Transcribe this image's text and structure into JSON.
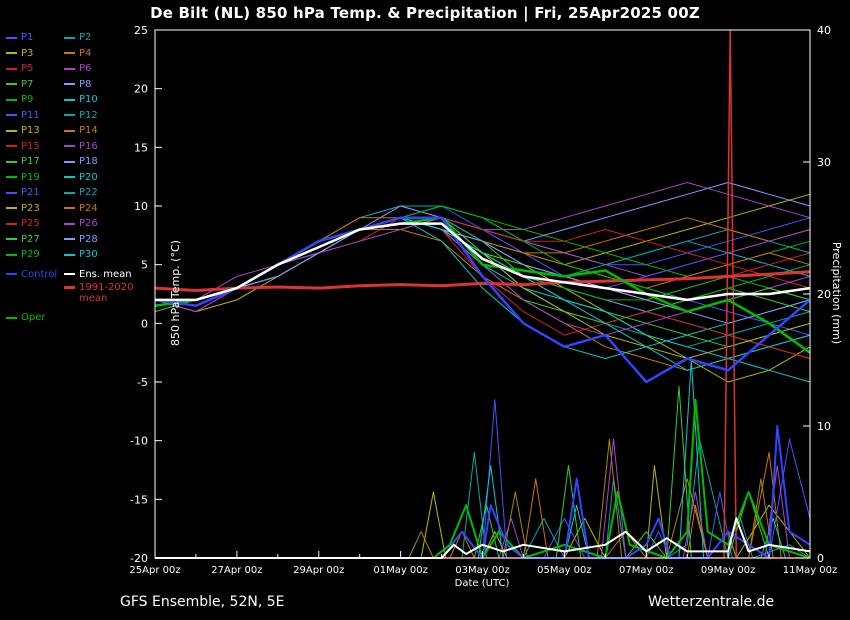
{
  "header": {
    "title": "De Bilt  (NL)  850 hPa Temp. & Precipitation | Fri, 25Apr2025 00Z"
  },
  "footer": {
    "left": "GFS Ensemble, 52N, 5E",
    "right": "Wetterzentrale.de"
  },
  "legend": {
    "control": {
      "label": "Control",
      "color": "#3344ff"
    },
    "ens_mean": {
      "label": "Ens. mean",
      "color": "#ffffff"
    },
    "oper": {
      "label": "Oper",
      "color": "#00bb00"
    },
    "climate": {
      "label_line1": "1991-2020",
      "label_line2": "mean",
      "color": "#dd3333"
    }
  },
  "chart_data": {
    "type": "line",
    "title": "De Bilt (NL) 850 hPa Temp. & Precipitation | Fri, 25Apr2025 00Z",
    "xlabel": "Date (UTC)",
    "ylabel_left": "850 hPa Temp. (°C)",
    "ylabel_right": "Precipitation (mm)",
    "ylim_left": [
      -20,
      25
    ],
    "ylim_right": [
      0,
      40
    ],
    "y_ticks_left": [
      25,
      20,
      15,
      10,
      5,
      0,
      -5,
      -10,
      -15,
      -20
    ],
    "y_ticks_right": [
      40,
      30,
      20,
      10,
      0
    ],
    "days": 16,
    "x_tick_labels": [
      "25Apr 00z",
      "27Apr 00z",
      "29Apr 00z",
      "01May 00z",
      "03May 00z",
      "05May 00z",
      "07May 00z",
      "09May 00z",
      "11May 00z"
    ],
    "legend_position": "left",
    "grid": false,
    "main_series": [
      {
        "name": "1991-2020 mean",
        "color": "#dd3333",
        "width": 3,
        "values": [
          3,
          2.8,
          3,
          3.1,
          3,
          3.2,
          3.3,
          3.2,
          3.4,
          3.3,
          3.5,
          3.6,
          3.7,
          3.8,
          4,
          4.2,
          4.4
        ]
      },
      {
        "name": "Oper",
        "color": "#00bb00",
        "width": 2.5,
        "values": [
          1.5,
          2,
          3,
          5,
          7,
          8,
          8.5,
          9,
          5,
          4.5,
          4,
          4.5,
          2.5,
          1,
          2,
          0,
          -2.5
        ]
      },
      {
        "name": "Control",
        "color": "#3344ff",
        "width": 2.5,
        "values": [
          2,
          1.5,
          3,
          5,
          7,
          8,
          9,
          9,
          4,
          0,
          -2,
          -1,
          -5,
          -3,
          -4,
          -1,
          2
        ]
      },
      {
        "name": "Ens. mean",
        "color": "#ffffff",
        "width": 2.5,
        "values": [
          2,
          2,
          3,
          5,
          6.5,
          8,
          8.5,
          8.5,
          5.5,
          4,
          3.5,
          3,
          2.5,
          2,
          2.5,
          2.5,
          3
        ]
      }
    ],
    "members": [
      {
        "name": "P1",
        "color": "#4455ff",
        "values": [
          2,
          2,
          3,
          5,
          7,
          8,
          9,
          9,
          8,
          7,
          6,
          5,
          5,
          6,
          7,
          8,
          9
        ]
      },
      {
        "name": "P2",
        "color": "#00aaaa",
        "values": [
          1.5,
          2,
          3,
          5,
          7,
          8,
          9,
          8,
          6,
          3,
          1,
          0,
          -1,
          -2,
          -1,
          0,
          1
        ]
      },
      {
        "name": "P3",
        "color": "#b8b800",
        "values": [
          2,
          2,
          3,
          4,
          6,
          8,
          9,
          8,
          7,
          6,
          5,
          6,
          7,
          8,
          9,
          10,
          11
        ]
      },
      {
        "name": "P4",
        "color": "#cc7700",
        "values": [
          2,
          2,
          3,
          5,
          7,
          8,
          8,
          7,
          4,
          2,
          0,
          -2,
          -3,
          -4,
          -3,
          -2,
          -3
        ]
      },
      {
        "name": "P5",
        "color": "#cc2222",
        "values": [
          2,
          1,
          3,
          5,
          6,
          7,
          9,
          9,
          7,
          5,
          4,
          3,
          2,
          3,
          4,
          5,
          6
        ]
      },
      {
        "name": "P6",
        "color": "#aa44cc",
        "values": [
          2,
          2,
          4,
          5,
          7,
          9,
          10,
          9,
          8,
          8,
          9,
          10,
          11,
          12,
          11,
          10,
          9
        ]
      },
      {
        "name": "P7",
        "color": "#33cc33",
        "values": [
          1,
          2,
          3,
          5,
          7,
          8,
          9,
          8,
          5,
          2,
          1,
          0,
          1,
          2,
          3,
          2,
          1
        ]
      },
      {
        "name": "P8",
        "color": "#8899ff",
        "values": [
          2,
          2,
          3,
          5,
          7,
          8,
          9,
          9,
          6,
          4,
          3,
          2,
          1,
          0,
          -1,
          -2,
          -1
        ]
      },
      {
        "name": "P9",
        "color": "#00bb00",
        "values": [
          2,
          2,
          3,
          4,
          6,
          8,
          9,
          10,
          9,
          8,
          7,
          6,
          5,
          4,
          5,
          6,
          7
        ]
      },
      {
        "name": "P10",
        "color": "#00cccc",
        "values": [
          2,
          2,
          3,
          5,
          7,
          8,
          9,
          7,
          3,
          0,
          -2,
          -3,
          -2,
          -1,
          0,
          1,
          2
        ]
      },
      {
        "name": "P11",
        "color": "#4455ff",
        "values": [
          2,
          2,
          3,
          5,
          6,
          8,
          9,
          9,
          8,
          6,
          5,
          4,
          3,
          2,
          1,
          0,
          -1
        ]
      },
      {
        "name": "P12",
        "color": "#00aaaa",
        "values": [
          2,
          2,
          3,
          5,
          7,
          9,
          10,
          10,
          9,
          7,
          6,
          5,
          6,
          7,
          8,
          7,
          6
        ]
      },
      {
        "name": "P13",
        "color": "#b8b800",
        "values": [
          2,
          1,
          2,
          4,
          6,
          8,
          9,
          8,
          6,
          5,
          3,
          1,
          -1,
          -3,
          -5,
          -4,
          -2
        ]
      },
      {
        "name": "P14",
        "color": "#cc7700",
        "values": [
          2,
          2,
          3,
          5,
          7,
          8,
          8,
          9,
          7,
          6,
          6,
          7,
          8,
          9,
          8,
          7,
          8
        ]
      },
      {
        "name": "P15",
        "color": "#cc2222",
        "values": [
          2,
          2,
          3,
          5,
          7,
          8,
          9,
          8,
          4,
          1,
          -1,
          0,
          1,
          0,
          -1,
          -2,
          -3
        ]
      },
      {
        "name": "P16",
        "color": "#aa44cc",
        "values": [
          2,
          2,
          3,
          4,
          6,
          7,
          8,
          9,
          8,
          7,
          6,
          5,
          4,
          5,
          6,
          7,
          8
        ]
      },
      {
        "name": "P17",
        "color": "#33cc33",
        "values": [
          2,
          2,
          3,
          5,
          7,
          8,
          9,
          9,
          7,
          4,
          2,
          1,
          0,
          -1,
          -2,
          -1,
          0
        ]
      },
      {
        "name": "P18",
        "color": "#8899ff",
        "values": [
          1.5,
          2,
          3,
          5,
          7,
          8,
          10,
          9,
          8,
          7,
          8,
          9,
          10,
          11,
          12,
          11,
          10
        ]
      },
      {
        "name": "P19",
        "color": "#00bb00",
        "values": [
          2,
          2,
          3,
          5,
          6,
          8,
          9,
          8,
          6,
          4,
          3,
          2,
          2,
          3,
          4,
          3,
          2
        ]
      },
      {
        "name": "P20",
        "color": "#00cccc",
        "values": [
          2,
          2,
          3,
          5,
          7,
          8,
          9,
          8,
          5,
          3,
          2,
          1,
          -1,
          -2,
          -3,
          -4,
          -5
        ]
      },
      {
        "name": "P21",
        "color": "#4455ff",
        "values": [
          2,
          2,
          3,
          5,
          7,
          8,
          9,
          10,
          8,
          6,
          4,
          3,
          4,
          5,
          6,
          5,
          4
        ]
      },
      {
        "name": "P22",
        "color": "#00aaaa",
        "values": [
          2,
          2,
          3,
          4,
          6,
          8,
          9,
          9,
          7,
          5,
          4,
          5,
          6,
          7,
          6,
          5,
          4
        ]
      },
      {
        "name": "P23",
        "color": "#b8b800",
        "values": [
          2,
          2,
          3,
          5,
          7,
          8,
          9,
          8,
          6,
          3,
          1,
          -1,
          -2,
          -3,
          -2,
          -1,
          0
        ]
      },
      {
        "name": "P24",
        "color": "#cc7700",
        "values": [
          2,
          2,
          3,
          5,
          7,
          9,
          9,
          8,
          7,
          6,
          5,
          4,
          3,
          4,
          5,
          6,
          5
        ]
      },
      {
        "name": "P25",
        "color": "#cc2222",
        "values": [
          2,
          2,
          3,
          5,
          7,
          8,
          9,
          9,
          8,
          7,
          7,
          8,
          7,
          6,
          5,
          4,
          3
        ]
      },
      {
        "name": "P26",
        "color": "#aa44cc",
        "values": [
          2,
          1,
          3,
          5,
          6,
          8,
          9,
          8,
          5,
          2,
          0,
          -1,
          0,
          1,
          2,
          3,
          4
        ]
      },
      {
        "name": "P27",
        "color": "#33cc33",
        "values": [
          2,
          2,
          3,
          5,
          7,
          8,
          9,
          9,
          6,
          5,
          4,
          3,
          2,
          1,
          2,
          3,
          2
        ]
      },
      {
        "name": "P28",
        "color": "#8899ff",
        "values": [
          2,
          2,
          3,
          4,
          6,
          8,
          9,
          8,
          7,
          5,
          4,
          3,
          2,
          1,
          0,
          1,
          2
        ]
      },
      {
        "name": "P29",
        "color": "#00bb00",
        "values": [
          2,
          2,
          3,
          5,
          7,
          8,
          9,
          10,
          9,
          7,
          5,
          4,
          3,
          2,
          3,
          4,
          5
        ]
      },
      {
        "name": "P30",
        "color": "#00cccc",
        "values": [
          2,
          2,
          3,
          5,
          7,
          8,
          9,
          8,
          6,
          4,
          2,
          0,
          -2,
          -4,
          -3,
          -2,
          -1
        ]
      }
    ],
    "precip_series": [
      {
        "name": "precip-member-teal",
        "color": "#00aaaa",
        "width": 1,
        "x": [
          0,
          7.5,
          7.8,
          8.1,
          9,
          9.5,
          10,
          11,
          11.2,
          11.5,
          12.5,
          13,
          13.3,
          14,
          14.3,
          14.6,
          15.5,
          16
        ],
        "values": [
          0,
          0,
          8,
          0,
          0,
          3,
          0,
          0,
          6,
          0,
          0,
          1,
          9,
          0,
          3,
          0,
          1,
          0
        ]
      },
      {
        "name": "precip-member-olive",
        "color": "#b8b800",
        "width": 1,
        "x": [
          0,
          6.5,
          6.8,
          7.1,
          8,
          8.3,
          8.6,
          10,
          10.5,
          11,
          12,
          12.2,
          12.5,
          13.5,
          14,
          14.2,
          15,
          16
        ],
        "values": [
          0,
          0,
          5,
          0,
          0,
          2,
          0,
          0,
          3,
          0,
          0,
          7,
          0,
          0,
          2,
          0,
          4,
          0
        ]
      },
      {
        "name": "precip-member-orange",
        "color": "#cc7700",
        "width": 1,
        "x": [
          0,
          7.2,
          7.5,
          7.8,
          9,
          9.3,
          9.6,
          11,
          11.5,
          12,
          13,
          13.2,
          13.5,
          14.5,
          15,
          15.3,
          16
        ],
        "values": [
          0,
          0,
          2,
          0,
          0,
          6,
          0,
          0,
          2,
          0,
          0,
          4,
          0,
          0,
          8,
          0,
          0
        ]
      },
      {
        "name": "precip-member-blue",
        "color": "#4455ff",
        "width": 1,
        "x": [
          0,
          8,
          8.3,
          8.6,
          9.5,
          10,
          10.5,
          12,
          12.3,
          12.6,
          13.5,
          13.8,
          14.1,
          15,
          15.5,
          16
        ],
        "values": [
          0,
          0,
          12,
          0,
          0,
          3,
          0,
          0,
          2,
          0,
          0,
          5,
          0,
          0,
          9,
          3
        ]
      },
      {
        "name": "precip-member-green",
        "color": "#33cc33",
        "width": 1,
        "x": [
          0,
          7.8,
          8.1,
          8.4,
          9.8,
          10.1,
          10.4,
          11.5,
          12,
          12.5,
          12.8,
          13.1,
          14,
          14.5,
          15,
          16
        ],
        "values": [
          0,
          0,
          4,
          0,
          0,
          7,
          0,
          0,
          2,
          0,
          13,
          0,
          0,
          5,
          0,
          0
        ]
      },
      {
        "name": "precip-member-gold",
        "color": "#aa8800",
        "width": 1,
        "x": [
          0,
          6.2,
          6.5,
          6.8,
          8.5,
          8.8,
          9.1,
          10.8,
          11.1,
          11.4,
          12.5,
          13,
          13.5,
          14.5,
          14.8,
          15.1,
          16
        ],
        "values": [
          0,
          0,
          2,
          0,
          0,
          5,
          0,
          0,
          9,
          0,
          0,
          6,
          0,
          0,
          6,
          0,
          0
        ]
      },
      {
        "name": "precip-member-cyan",
        "color": "#00cccc",
        "width": 1,
        "x": [
          0,
          7.9,
          8.2,
          8.5,
          10,
          10.3,
          10.6,
          12.8,
          13.1,
          13.4,
          14.8,
          15.1,
          15.4,
          16
        ],
        "values": [
          0,
          0,
          7,
          0,
          0,
          4,
          0,
          0,
          15,
          0,
          0,
          3,
          0,
          0
        ]
      },
      {
        "name": "precip-member-purple",
        "color": "#aa44cc",
        "width": 1,
        "x": [
          0,
          8.4,
          8.7,
          9,
          10.9,
          11.2,
          11.5,
          12.9,
          13.2,
          13.5,
          14.9,
          15.2,
          15.5,
          16
        ],
        "values": [
          0,
          0,
          3,
          0,
          0,
          9,
          0,
          0,
          5,
          0,
          0,
          7,
          0,
          0
        ]
      },
      {
        "name": "precip-red-spike",
        "color": "#dd3333",
        "width": 1.5,
        "x": [
          0,
          13.9,
          14.05,
          14.2,
          16
        ],
        "values": [
          0,
          0,
          40,
          0,
          0
        ]
      },
      {
        "name": "precip-oper",
        "color": "#00bb00",
        "width": 2,
        "x": [
          0,
          6.8,
          7.2,
          7.6,
          8,
          8.4,
          9,
          10,
          11,
          11.3,
          11.6,
          12.5,
          13,
          13.2,
          13.5,
          14,
          14.5,
          15,
          16
        ],
        "values": [
          0,
          0,
          1,
          4,
          0,
          2,
          0,
          1,
          0,
          5,
          1,
          0,
          2,
          12,
          2,
          1,
          5,
          1,
          0
        ]
      },
      {
        "name": "precip-control",
        "color": "#3344ff",
        "width": 2,
        "x": [
          0,
          7,
          7.5,
          8,
          8.2,
          8.6,
          9,
          10,
          10.3,
          10.6,
          11.5,
          12,
          12.3,
          12.6,
          13.5,
          14,
          15,
          15.2,
          15.5,
          16
        ],
        "values": [
          0,
          0,
          2,
          0,
          4,
          1,
          0,
          0,
          6,
          0,
          0,
          1,
          3,
          0,
          0,
          2,
          0,
          10,
          2,
          1
        ]
      },
      {
        "name": "precip-ens-mean",
        "color": "#ffffff",
        "width": 2,
        "x": [
          0,
          7,
          7.3,
          7.6,
          8,
          8.5,
          9,
          10,
          11,
          11.5,
          12,
          12.5,
          13,
          14,
          14.2,
          14.5,
          15,
          16
        ],
        "values": [
          0,
          0,
          1,
          0.3,
          1,
          0.5,
          1,
          0.5,
          1,
          2,
          0.5,
          1.5,
          0.5,
          0.5,
          3,
          0.5,
          1,
          0.5
        ]
      }
    ]
  }
}
